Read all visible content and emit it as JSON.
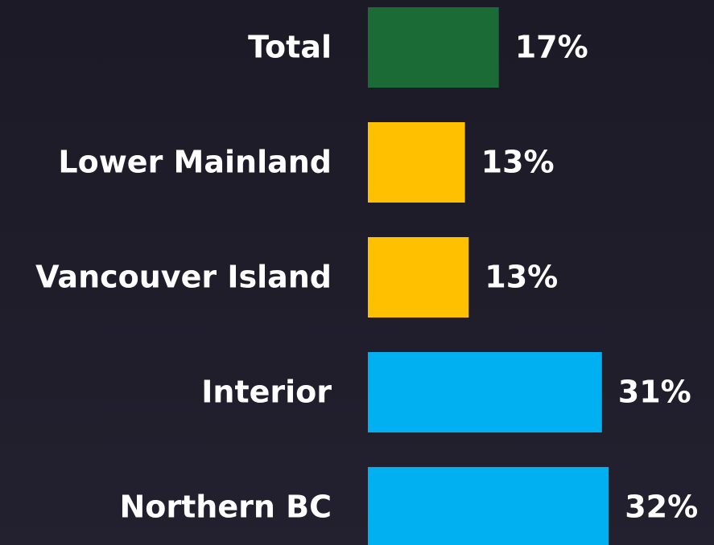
{
  "chart_data": {
    "type": "bar",
    "orientation": "horizontal",
    "categories": [
      "Total",
      "Lower Mainland",
      "Vancouver Island",
      "Interior",
      "Northern BC"
    ],
    "values": [
      17.4,
      12.9,
      13.4,
      31.1,
      32.0
    ],
    "value_labels": [
      "17%",
      "13%",
      "13%",
      "31%",
      "32%"
    ],
    "colors": [
      "#1a6b35",
      "#ffc000",
      "#ffc000",
      "#00b0f0",
      "#00b0f0"
    ]
  }
}
